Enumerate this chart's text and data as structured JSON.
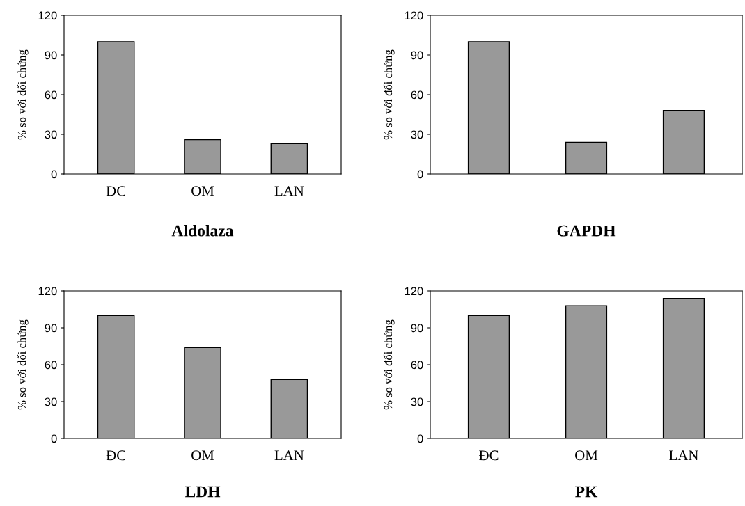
{
  "chart_data": [
    {
      "type": "bar",
      "title": "Aldolaza",
      "ylabel": "% so với đối chứng",
      "categories": [
        "ĐC",
        "OM",
        "LAN"
      ],
      "values": [
        100,
        26,
        23
      ],
      "color": "#999999",
      "ylim": [
        0,
        120
      ],
      "yticks": [
        0,
        30,
        60,
        90,
        120
      ],
      "grid": false,
      "legend": false
    },
    {
      "type": "bar",
      "title": "LDH",
      "ylabel": "% so với đối chứng",
      "categories": [
        "ĐC",
        "OM",
        "LAN"
      ],
      "values": [
        100,
        74,
        48
      ],
      "color": "#999999",
      "ylim": [
        0,
        120
      ],
      "yticks": [
        0,
        30,
        60,
        90,
        120
      ],
      "grid": false,
      "legend": false
    },
    {
      "type": "bar",
      "title": "PK",
      "ylabel": "% so với đối chứng",
      "categories": [
        "ĐC",
        "OM",
        "LAN"
      ],
      "values": [
        100,
        108,
        114
      ],
      "color": "#999999",
      "ylim": [
        0,
        120
      ],
      "yticks": [
        0,
        30,
        60,
        90,
        120
      ],
      "grid": false,
      "legend": false
    },
    {
      "type": "bar",
      "title": "GAPDH",
      "ylabel": "% so với đối chứng",
      "categories": [
        null,
        null,
        null
      ],
      "values": [
        100,
        24,
        48
      ],
      "color": "#999999",
      "ylim": [
        0,
        120
      ],
      "yticks": [
        0,
        30,
        60,
        90,
        120
      ],
      "grid": false,
      "legend": false
    }
  ]
}
